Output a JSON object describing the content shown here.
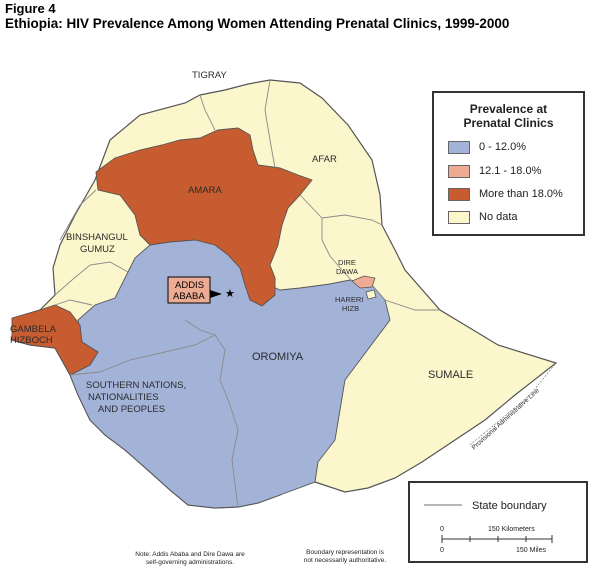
{
  "figure_label": "Figure 4",
  "title": "Ethiopia: HIV Prevalence Among Women Attending Prenatal Clinics, 1999-2000",
  "colors": {
    "low": "#a3b3d8",
    "mid": "#eeab93",
    "high": "#c65c30",
    "nodata": "#fbf6cc",
    "boundary": "#8a8a8a"
  },
  "regions": {
    "tigray": "TIGRAY",
    "afar": "AFAR",
    "amara": "AMARA",
    "binshangul_1": "BINSHANGUL",
    "binshangul_2": "GUMUZ",
    "dire_dawa_1": "DIRE",
    "dire_dawa_2": "DAWA",
    "hareri_1": "HARERI",
    "hareri_2": "HIZB",
    "addis_1": "ADDIS",
    "addis_2": "ABABA",
    "gambela_1": "GAMBELA",
    "gambela_2": "HIZBOCH",
    "oromiya": "OROMIYA",
    "snnp_1": "SOUTHERN NATIONS,",
    "snnp_2": "NATIONALITIES",
    "snnp_3": "AND PEOPLES",
    "sumale": "SUMALE",
    "provisional_line": "Provisional Administrative Line"
  },
  "legend": {
    "title_1": "Prevalence at",
    "title_2": "Prenatal Clinics",
    "items": [
      {
        "label": "0 - 12.0%",
        "color": "#a3b3d8"
      },
      {
        "label": "12.1 - 18.0%",
        "color": "#eeab93"
      },
      {
        "label": "More than 18.0%",
        "color": "#c65c30"
      },
      {
        "label": "No data",
        "color": "#fbf6cc"
      }
    ]
  },
  "scale": {
    "boundary_label": "State boundary",
    "km_label": "150 Kilometers",
    "km_zero": "0",
    "mi_zero": "0",
    "mi_label": "150 Miles"
  },
  "notes": {
    "left_1": "Note: Addis Ababa and Dire Dawa are",
    "left_2": "self-governing administrations.",
    "right_1": "Boundary representation is",
    "right_2": "not necessarily authoritative."
  }
}
